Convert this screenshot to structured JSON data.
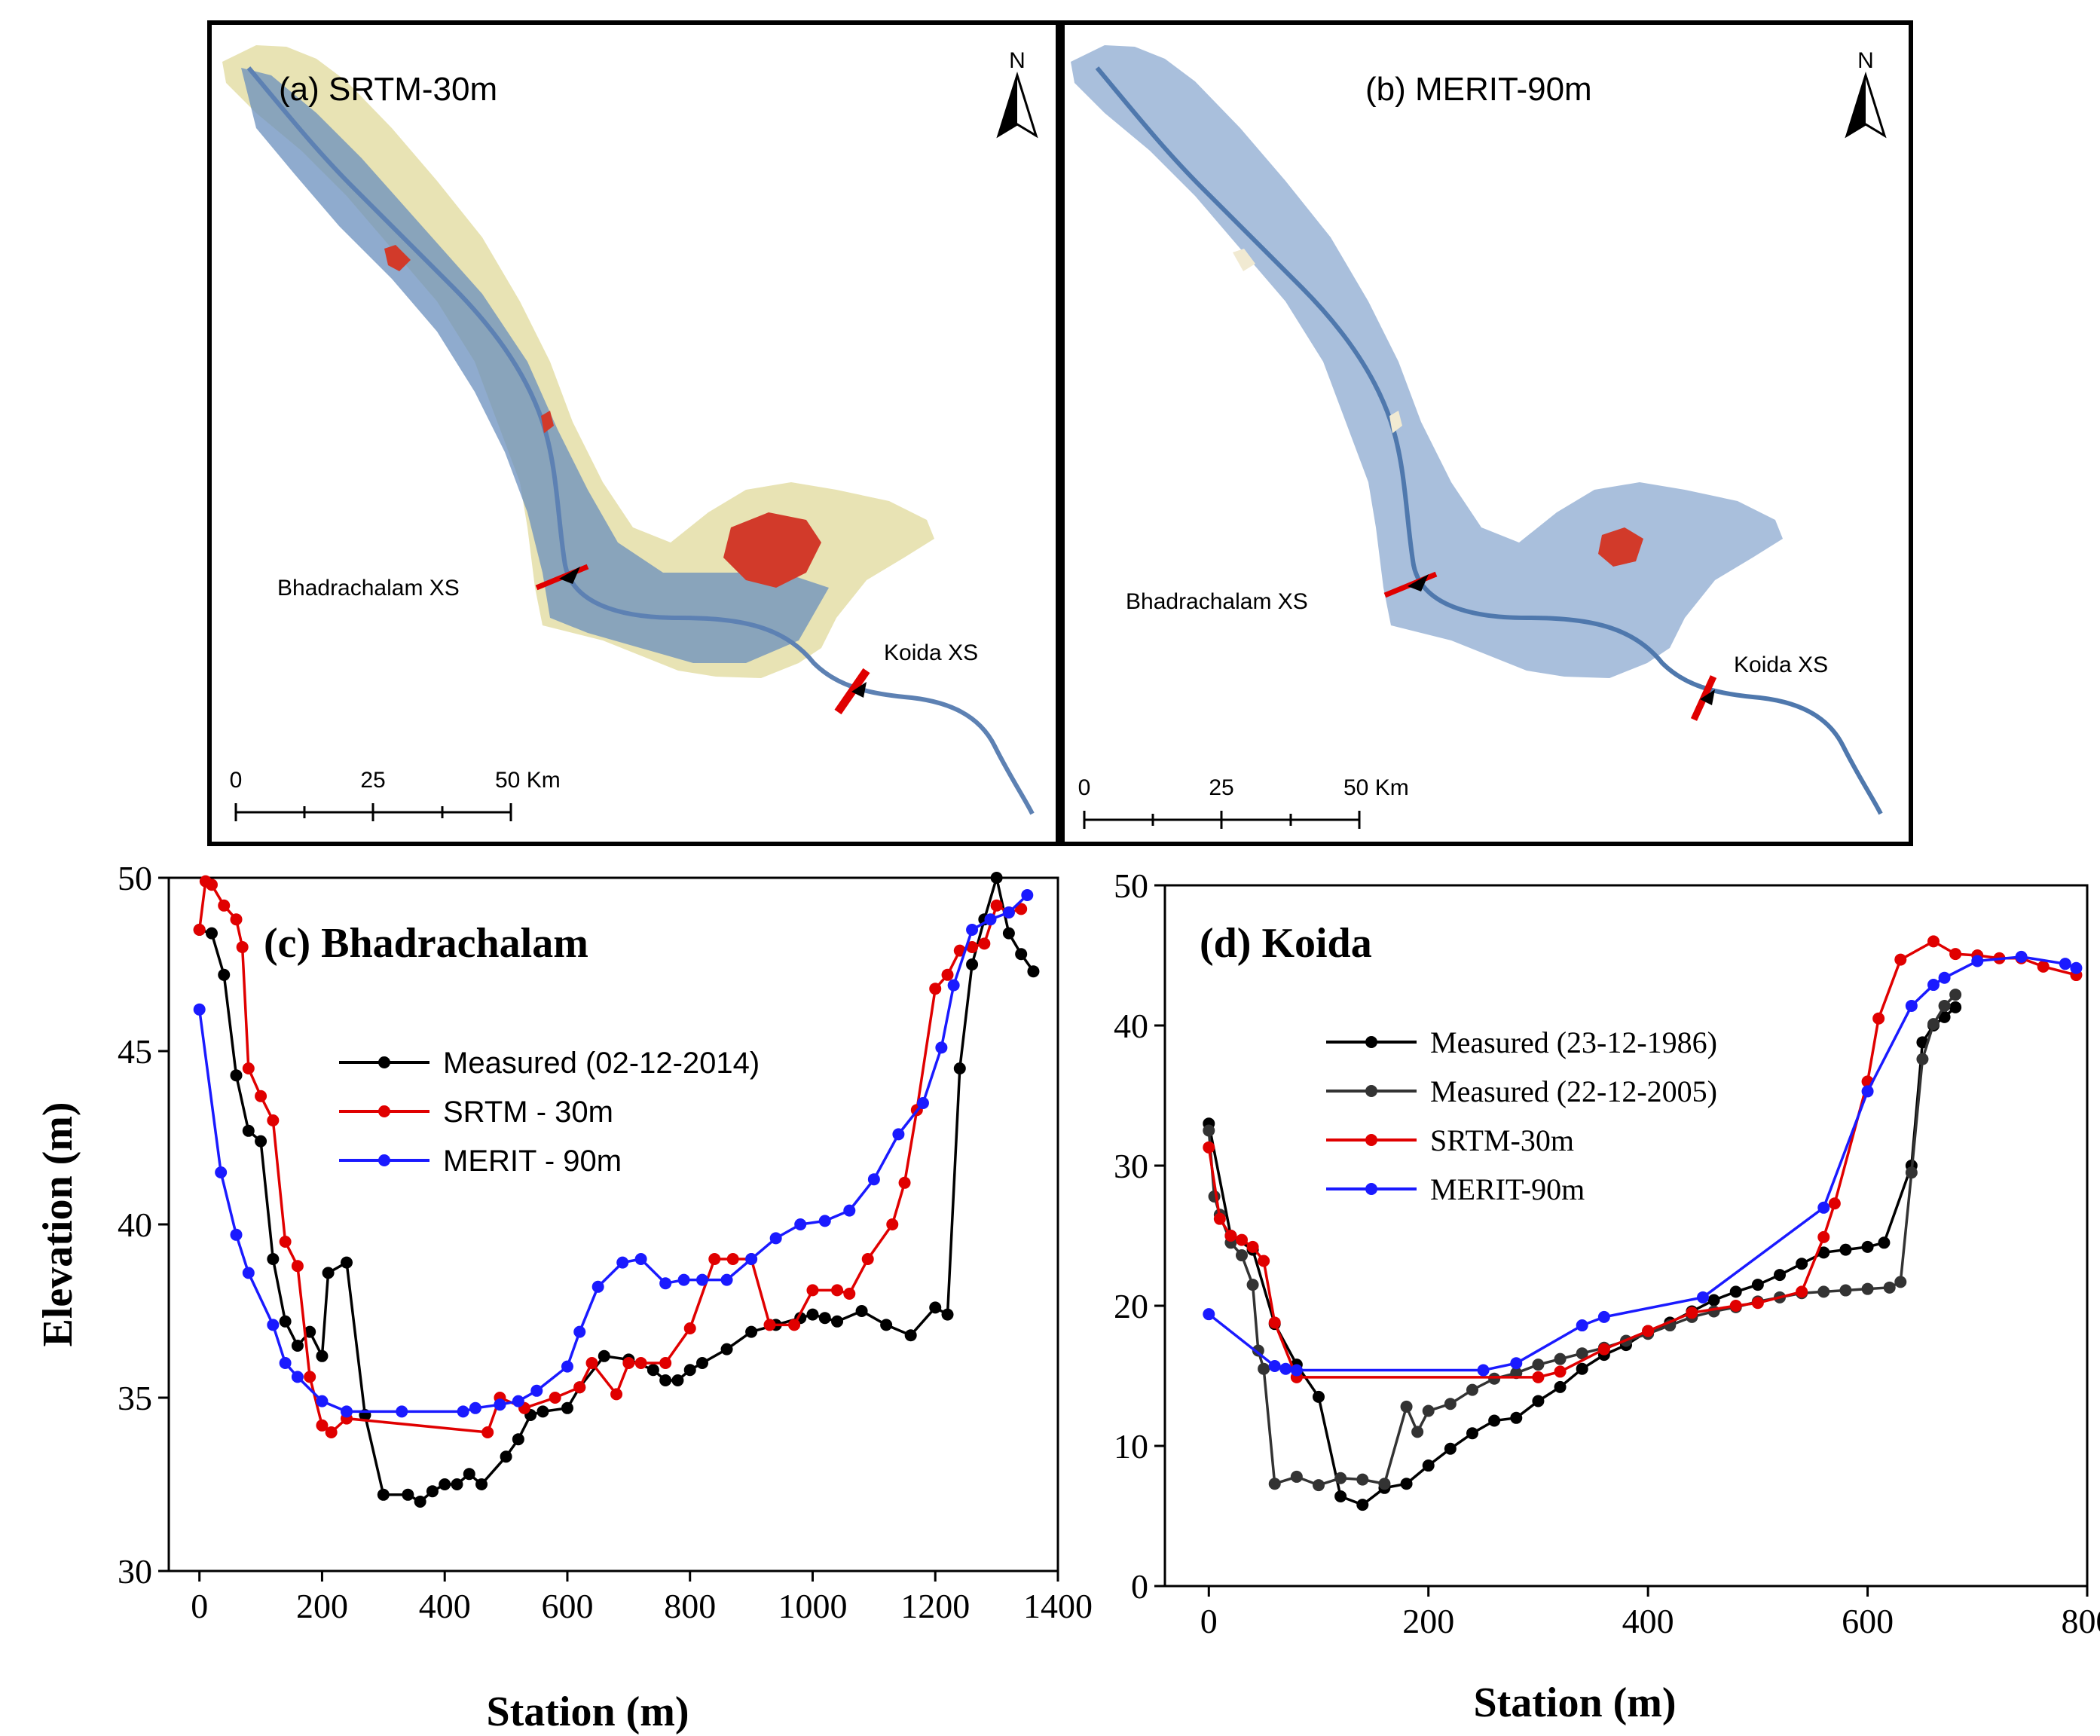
{
  "maps": [
    {
      "id": "a",
      "title": "(a) SRTM-30m",
      "north": "N",
      "labels": {
        "bhadrachalam": "Bhadrachalam XS",
        "koida": "Koida XS"
      },
      "scale": {
        "t0": "0",
        "t25": "25",
        "t50": "50 Km"
      },
      "colors": {
        "land": "#e8e3b4",
        "low": "#6a8fbe",
        "high": "#d23a2a"
      }
    },
    {
      "id": "b",
      "title": "(b) MERIT-90m",
      "north": "N",
      "labels": {
        "bhadrachalam": "Bhadrachalam XS",
        "koida": "Koida XS"
      },
      "scale": {
        "t0": "0",
        "t25": "25",
        "t50": "50 Km"
      },
      "colors": {
        "land": "#a9bfdc",
        "low": "#5f86b9",
        "high": "#d23a2a"
      }
    }
  ],
  "chart_data": [
    {
      "type": "line",
      "title": "(c) Bhadrachalam",
      "xlabel": "Station (m)",
      "ylabel": "Elevation (m)",
      "xlim": [
        -50,
        1400
      ],
      "ylim": [
        30,
        50
      ],
      "xticks": [
        0,
        200,
        400,
        600,
        800,
        1000,
        1200,
        1400
      ],
      "yticks": [
        30,
        35,
        40,
        45,
        50
      ],
      "legend": "upper-center",
      "series": [
        {
          "name": "Measured (02-12-2014)",
          "color": "#000000",
          "connected": true,
          "x": [
            0,
            20,
            40,
            60,
            80,
            100,
            120,
            140,
            160,
            180,
            200,
            210,
            240,
            270,
            300,
            340,
            360,
            380,
            400,
            420,
            440,
            460,
            500,
            520,
            540,
            560,
            600,
            620,
            660,
            700,
            740,
            760,
            780,
            800,
            820,
            860,
            900,
            940,
            980,
            1000,
            1020,
            1040,
            1080,
            1120,
            1160,
            1200,
            1220,
            1240,
            1260,
            1280,
            1300,
            1320,
            1340,
            1360
          ],
          "y": [
            48.5,
            48.4,
            47.2,
            44.3,
            42.7,
            42.4,
            39.0,
            37.2,
            36.5,
            36.9,
            36.2,
            38.6,
            38.9,
            34.5,
            32.2,
            32.2,
            32.0,
            32.3,
            32.5,
            32.5,
            32.8,
            32.5,
            33.3,
            33.8,
            34.5,
            34.6,
            34.7,
            35.3,
            36.2,
            36.1,
            35.8,
            35.5,
            35.5,
            35.8,
            36.0,
            36.4,
            36.9,
            37.1,
            37.3,
            37.4,
            37.3,
            37.2,
            37.5,
            37.1,
            36.8,
            37.6,
            37.4,
            44.5,
            47.5,
            48.8,
            50.0,
            48.4,
            47.8,
            47.3
          ]
        },
        {
          "name": "SRTM - 30m",
          "color": "#e00000",
          "connected": true,
          "x": [
            0,
            10,
            20,
            40,
            60,
            70,
            80,
            100,
            120,
            140,
            160,
            180,
            200,
            215,
            240,
            470,
            490,
            530,
            580,
            620,
            640,
            680,
            700,
            720,
            760,
            800,
            840,
            870,
            900,
            930,
            970,
            1000,
            1040,
            1060,
            1090,
            1130,
            1150,
            1170,
            1200,
            1220,
            1240,
            1260,
            1280,
            1300,
            1320,
            1340
          ],
          "y": [
            48.5,
            49.9,
            49.8,
            49.2,
            48.8,
            48.0,
            44.5,
            43.7,
            43.0,
            39.5,
            38.8,
            35.6,
            34.2,
            34.0,
            34.4,
            34.0,
            35.0,
            34.7,
            35.0,
            35.3,
            36.0,
            35.1,
            36.0,
            36.0,
            36.0,
            37.0,
            39.0,
            39.0,
            39.0,
            37.1,
            37.1,
            38.1,
            38.1,
            38.0,
            39.0,
            40.0,
            41.2,
            43.3,
            46.8,
            47.2,
            47.9,
            48.0,
            48.1,
            49.2,
            49.0,
            49.1
          ]
        },
        {
          "name": "MERIT - 90m",
          "color": "#1a1aff",
          "connected": true,
          "x": [
            0,
            35,
            60,
            80,
            120,
            140,
            160,
            200,
            240,
            330,
            430,
            450,
            490,
            520,
            550,
            600,
            620,
            650,
            690,
            720,
            760,
            790,
            820,
            860,
            900,
            940,
            980,
            1020,
            1060,
            1100,
            1140,
            1180,
            1210,
            1230,
            1260,
            1290,
            1320,
            1350
          ],
          "y": [
            46.2,
            41.5,
            39.7,
            38.6,
            37.1,
            36.0,
            35.6,
            34.9,
            34.6,
            34.6,
            34.6,
            34.7,
            34.8,
            34.9,
            35.2,
            35.9,
            36.9,
            38.2,
            38.9,
            39.0,
            38.3,
            38.4,
            38.4,
            38.4,
            39.0,
            39.6,
            40.0,
            40.1,
            40.4,
            41.3,
            42.6,
            43.5,
            45.1,
            46.9,
            48.5,
            48.8,
            49.0,
            49.5
          ]
        }
      ]
    },
    {
      "type": "line",
      "title": "(d) Koida",
      "xlabel": "Station (m)",
      "ylabel": "",
      "xlim": [
        -40,
        800
      ],
      "ylim": [
        0,
        50
      ],
      "xticks": [
        0,
        200,
        400,
        600,
        800
      ],
      "yticks": [
        0,
        10,
        20,
        30,
        40,
        50
      ],
      "legend": "upper-left",
      "series": [
        {
          "name": "Measured (23-12-1986)",
          "color": "#000000",
          "connected": true,
          "x": [
            0,
            20,
            40,
            60,
            80,
            100,
            120,
            140,
            160,
            180,
            200,
            220,
            240,
            260,
            280,
            300,
            320,
            340,
            360,
            380,
            400,
            420,
            440,
            460,
            480,
            500,
            520,
            540,
            560,
            580,
            600,
            615,
            640,
            650,
            660,
            670,
            680
          ],
          "y": [
            33.0,
            25.0,
            24.0,
            18.7,
            15.8,
            13.5,
            6.4,
            5.8,
            7.0,
            7.3,
            8.6,
            9.8,
            10.9,
            11.8,
            12.0,
            13.2,
            14.2,
            15.5,
            16.5,
            17.2,
            18.2,
            18.8,
            19.6,
            20.4,
            21.0,
            21.5,
            22.2,
            23.0,
            23.8,
            24.0,
            24.2,
            24.5,
            30.0,
            38.8,
            40.0,
            40.6,
            41.3
          ]
        },
        {
          "name": "Measured (22-12-2005)",
          "color": "#333333",
          "connected": true,
          "x": [
            0,
            5,
            10,
            20,
            30,
            40,
            45,
            50,
            60,
            80,
            100,
            120,
            140,
            160,
            180,
            190,
            200,
            220,
            240,
            260,
            280,
            300,
            320,
            340,
            360,
            380,
            400,
            420,
            440,
            460,
            480,
            500,
            520,
            540,
            560,
            580,
            600,
            620,
            630,
            640,
            650,
            660,
            670,
            680
          ],
          "y": [
            32.5,
            27.8,
            26.5,
            24.5,
            23.6,
            21.5,
            16.8,
            15.5,
            7.3,
            7.8,
            7.2,
            7.7,
            7.6,
            7.3,
            12.8,
            11.0,
            12.5,
            13.0,
            14.0,
            14.8,
            15.2,
            15.8,
            16.2,
            16.6,
            17.0,
            17.5,
            18.0,
            18.6,
            19.2,
            19.6,
            19.9,
            20.3,
            20.6,
            20.9,
            21.0,
            21.1,
            21.2,
            21.3,
            21.7,
            29.5,
            37.6,
            40.1,
            41.4,
            42.2
          ]
        },
        {
          "name": "SRTM-30m",
          "color": "#e00000",
          "connected": true,
          "x": [
            0,
            10,
            20,
            30,
            40,
            50,
            60,
            80,
            300,
            320,
            360,
            400,
            440,
            480,
            500,
            540,
            560,
            570,
            600,
            610,
            630,
            660,
            680,
            700,
            720,
            740,
            760,
            790
          ],
          "y": [
            31.3,
            26.2,
            25.0,
            24.7,
            24.2,
            23.2,
            18.8,
            14.9,
            14.9,
            15.3,
            16.9,
            18.2,
            19.5,
            20.0,
            20.2,
            21.0,
            24.9,
            27.3,
            36.0,
            40.5,
            44.7,
            46.0,
            45.1,
            45.0,
            44.8,
            44.8,
            44.2,
            43.6
          ]
        },
        {
          "name": "MERIT-90m",
          "color": "#1a1aff",
          "connected": true,
          "x": [
            0,
            60,
            70,
            80,
            250,
            280,
            340,
            360,
            450,
            560,
            600,
            640,
            660,
            670,
            700,
            740,
            780,
            790
          ],
          "y": [
            19.4,
            15.7,
            15.5,
            15.4,
            15.4,
            15.9,
            18.6,
            19.2,
            20.6,
            27.0,
            35.3,
            41.4,
            42.9,
            43.4,
            44.6,
            44.9,
            44.4,
            44.1
          ]
        }
      ]
    }
  ]
}
